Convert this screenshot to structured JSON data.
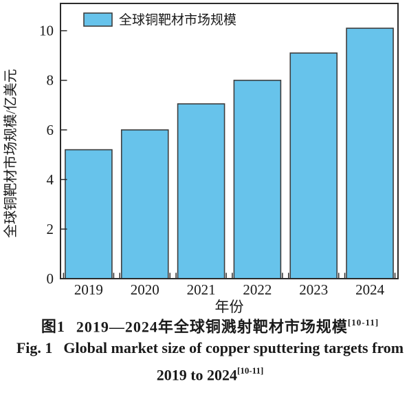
{
  "chart_data": {
    "type": "bar",
    "categories": [
      "2019",
      "2020",
      "2021",
      "2022",
      "2023",
      "2024"
    ],
    "values": [
      5.2,
      6.0,
      7.05,
      8.0,
      9.1,
      10.1
    ],
    "title": "",
    "xlabel": "年份",
    "ylabel": "全球铜靶材市场规模/亿美元",
    "legend_label": "全球铜靶材市场规模",
    "yticks": [
      0,
      2,
      4,
      6,
      8,
      10
    ],
    "ylim": [
      0,
      11.1
    ],
    "grid": false,
    "legend_position": "top-left-inside",
    "bar_fill": "#67C3EB",
    "bar_stroke": "#3D3D3D",
    "axis_color": "#2B2B2B",
    "text_color": "#1A1A1A"
  },
  "caption": {
    "zh_prefix": "图1",
    "zh_text": "2019—2024年全球铜溅射靶材市场规模",
    "zh_sup": "[10-11]",
    "en_prefix": "Fig. 1",
    "en_line1": "Global market size of copper sputtering targets from",
    "en_line2": "2019 to 2024",
    "en_sup": "[10-11]"
  }
}
